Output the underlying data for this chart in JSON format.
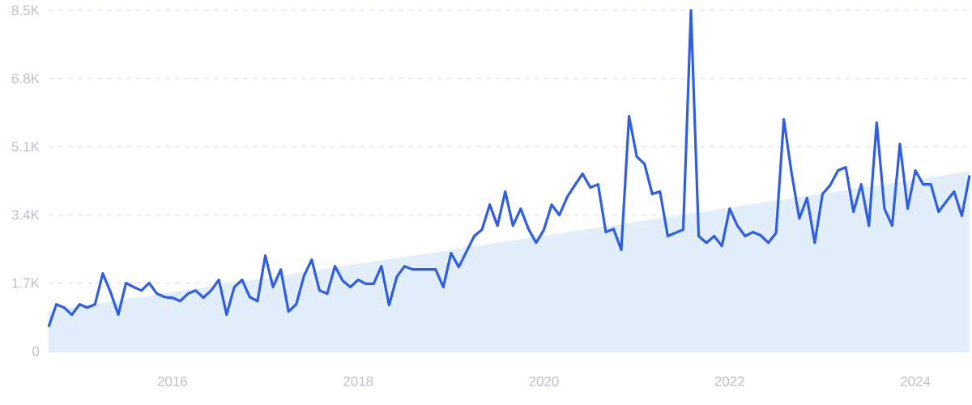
{
  "chart_data": {
    "type": "line",
    "xlim": [
      "2014-09",
      "2024-08"
    ],
    "ylim": [
      0,
      8500
    ],
    "xticks": [
      "2016",
      "2018",
      "2020",
      "2022",
      "2024"
    ],
    "yticks": [
      0,
      {
        "value": 1700,
        "label": "1.7K"
      },
      {
        "value": 3400,
        "label": "3.4K"
      },
      {
        "value": 5100,
        "label": "5.1K"
      },
      {
        "value": 6800,
        "label": "6.8K"
      },
      {
        "value": 8500,
        "label": "8.5K"
      }
    ],
    "grid": "y",
    "series": [
      {
        "type": "area",
        "color": "#e3eefb",
        "x": [
          "2014-09",
          "2024-08"
        ],
        "values": [
          1010,
          4485
        ]
      },
      {
        "color": "#2f5fe0",
        "values": [
          606,
          1170,
          1090,
          910,
          1170,
          1090,
          1170,
          1940,
          1475,
          910,
          1700,
          1600,
          1515,
          1700,
          1435,
          1350,
          1335,
          1250,
          1435,
          1515,
          1335,
          1515,
          1780,
          910,
          1600,
          1780,
          1350,
          1250,
          2385,
          1600,
          2040,
          990,
          1170,
          1880,
          2280,
          1515,
          1435,
          2120,
          1760,
          1600,
          1780,
          1680,
          1680,
          2120,
          1150,
          1860,
          2120,
          2040,
          2040,
          2040,
          2040,
          1600,
          2445,
          2100,
          2485,
          2870,
          3030,
          3655,
          3130,
          3980,
          3130,
          3555,
          3050,
          2705,
          3030,
          3655,
          3395,
          3840,
          4140,
          4425,
          4080,
          4160,
          2970,
          3050,
          2525,
          5860,
          4850,
          4670,
          3920,
          3980,
          2870,
          2950,
          3030,
          8500,
          2870,
          2705,
          2870,
          2625,
          3555,
          3130,
          2870,
          2970,
          2890,
          2705,
          2950,
          5780,
          4445,
          3310,
          3820,
          2705,
          3920,
          4140,
          4505,
          4585,
          3475,
          4160,
          3130,
          5700,
          3555,
          3130,
          5170,
          3555,
          4505,
          4160,
          4160,
          3475,
          3735,
          3980,
          3375,
          4385
        ]
      }
    ],
    "x": [
      "2014-09",
      "2014-10",
      "2014-11",
      "2014-12",
      "2015-01",
      "2015-02",
      "2015-03",
      "2015-04",
      "2015-05",
      "2015-06",
      "2015-07",
      "2015-08",
      "2015-09",
      "2015-10",
      "2015-11",
      "2015-12",
      "2016-01",
      "2016-02",
      "2016-03",
      "2016-04",
      "2016-05",
      "2016-06",
      "2016-07",
      "2016-08",
      "2016-09",
      "2016-10",
      "2016-11",
      "2016-12",
      "2017-01",
      "2017-02",
      "2017-03",
      "2017-04",
      "2017-05",
      "2017-06",
      "2017-07",
      "2017-08",
      "2017-09",
      "2017-10",
      "2017-11",
      "2017-12",
      "2018-01",
      "2018-02",
      "2018-03",
      "2018-04",
      "2018-05",
      "2018-06",
      "2018-07",
      "2018-08",
      "2018-09",
      "2018-10",
      "2018-11",
      "2018-12",
      "2019-01",
      "2019-02",
      "2019-03",
      "2019-04",
      "2019-05",
      "2019-06",
      "2019-07",
      "2019-08",
      "2019-09",
      "2019-10",
      "2019-11",
      "2019-12",
      "2020-01",
      "2020-02",
      "2020-03",
      "2020-04",
      "2020-05",
      "2020-06",
      "2020-07",
      "2020-08",
      "2020-09",
      "2020-10",
      "2020-11",
      "2020-12",
      "2021-01",
      "2021-02",
      "2021-03",
      "2021-04",
      "2021-05",
      "2021-06",
      "2021-07",
      "2021-08",
      "2021-09",
      "2021-10",
      "2021-11",
      "2021-12",
      "2022-01",
      "2022-02",
      "2022-03",
      "2022-04",
      "2022-05",
      "2022-06",
      "2022-07",
      "2022-08",
      "2022-09",
      "2022-10",
      "2022-11",
      "2022-12",
      "2023-01",
      "2023-02",
      "2023-03",
      "2023-04",
      "2023-05",
      "2023-06",
      "2023-07",
      "2023-08",
      "2023-09",
      "2023-10",
      "2023-11",
      "2023-12",
      "2024-01",
      "2024-02",
      "2024-03",
      "2024-04",
      "2024-05",
      "2024-06",
      "2024-07",
      "2024-08"
    ]
  }
}
